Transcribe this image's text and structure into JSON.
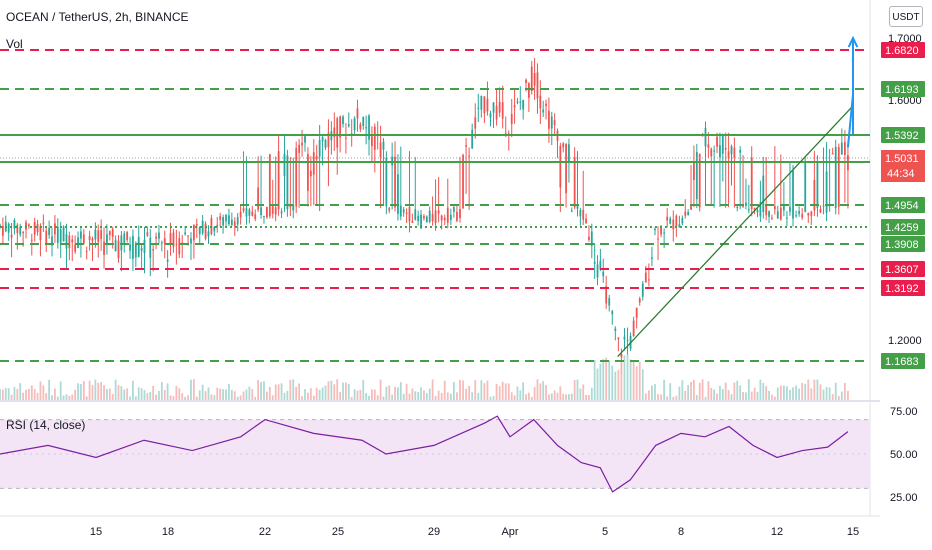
{
  "header": {
    "title": "OCEAN / TetherUS, 2h, BINANCE",
    "vol_label": "Vol"
  },
  "currency_label": "USDT",
  "colors": {
    "up": "#26a69a",
    "down": "#ef5350",
    "green_line": "#43a047",
    "red_line": "#e91e4d",
    "support_line": "#2e7d32",
    "projection": "#2196f3",
    "rsi": "#7b1fa2",
    "rsi_band": "#f3e5f5"
  },
  "chart_data": [
    {
      "type": "candlestick",
      "title": "OCEAN / TetherUS, 2h, BINANCE",
      "x_ticks": [
        "15",
        "18",
        "22",
        "25",
        "29",
        "Apr",
        "5",
        "8",
        "12",
        "15"
      ],
      "y_ticks": [
        "1.7000",
        "1.6000",
        "1.2000"
      ],
      "ylim": [
        1.1,
        1.72
      ],
      "current_price": "1.5031",
      "countdown": "44:34",
      "levels": [
        {
          "value": 1.682,
          "label": "1.6820",
          "style": "dashed",
          "color": "red"
        },
        {
          "value": 1.6193,
          "label": "1.6193",
          "style": "dashed",
          "color": "green"
        },
        {
          "value": 1.5392,
          "label": "1.5392",
          "style": "solid",
          "color": "green"
        },
        {
          "value": 1.4954,
          "label": "1.4954",
          "style": "dashed",
          "color": "green"
        },
        {
          "value": 1.4259,
          "label": "1.4259",
          "style": "dotted",
          "color": "green"
        },
        {
          "value": 1.3908,
          "label": "1.3908",
          "style": "dashed",
          "color": "green"
        },
        {
          "value": 1.3607,
          "label": "1.3607",
          "style": "dashed",
          "color": "red"
        },
        {
          "value": 1.3192,
          "label": "1.3192",
          "style": "dashed",
          "color": "red"
        },
        {
          "value": 1.1683,
          "label": "1.1683",
          "style": "dashed",
          "color": "green"
        }
      ],
      "price_path": [
        {
          "x": 0,
          "y": 1.43
        },
        {
          "x": 4,
          "y": 1.4
        },
        {
          "x": 7,
          "y": 1.39
        },
        {
          "x": 10,
          "y": 1.46
        },
        {
          "x": 13,
          "y": 1.52
        },
        {
          "x": 15,
          "y": 1.57
        },
        {
          "x": 16,
          "y": 1.5
        },
        {
          "x": 17.5,
          "y": 1.45
        },
        {
          "x": 19,
          "y": 1.47
        },
        {
          "x": 20,
          "y": 1.6
        },
        {
          "x": 21,
          "y": 1.56
        },
        {
          "x": 22,
          "y": 1.64
        },
        {
          "x": 23,
          "y": 1.53
        },
        {
          "x": 24,
          "y": 1.47
        },
        {
          "x": 25,
          "y": 1.32
        },
        {
          "x": 25.5,
          "y": 1.19
        },
        {
          "x": 26,
          "y": 1.2
        },
        {
          "x": 27,
          "y": 1.42
        },
        {
          "x": 28,
          "y": 1.45
        },
        {
          "x": 29,
          "y": 1.53
        },
        {
          "x": 30,
          "y": 1.52
        },
        {
          "x": 31,
          "y": 1.48
        },
        {
          "x": 32,
          "y": 1.47
        },
        {
          "x": 33,
          "y": 1.48
        },
        {
          "x": 34,
          "y": 1.49
        },
        {
          "x": 34.8,
          "y": 1.52
        }
      ],
      "projection_path": [
        {
          "x": 34.8,
          "y": 1.52
        },
        {
          "x": 36.1,
          "y": 1.61
        },
        {
          "x": 37.4,
          "y": 1.54
        },
        {
          "x": 38.7,
          "y": 1.64
        },
        {
          "x": 39.5,
          "y": 1.7
        }
      ],
      "trendline": [
        {
          "x": 25.5,
          "y": 1.175
        },
        {
          "x": 39.4,
          "y": 1.59
        }
      ]
    },
    {
      "type": "line",
      "title": "RSI (14, close)",
      "y_ticks": [
        "75.00",
        "50.00",
        "25.00"
      ],
      "ylim": [
        20,
        80
      ],
      "bands": [
        30,
        70
      ],
      "values": [
        {
          "x": 0,
          "y": 50
        },
        {
          "x": 2,
          "y": 55
        },
        {
          "x": 4,
          "y": 48
        },
        {
          "x": 6,
          "y": 58
        },
        {
          "x": 8,
          "y": 52
        },
        {
          "x": 10,
          "y": 60
        },
        {
          "x": 11,
          "y": 70
        },
        {
          "x": 13,
          "y": 62
        },
        {
          "x": 15,
          "y": 58
        },
        {
          "x": 16,
          "y": 50
        },
        {
          "x": 18,
          "y": 55
        },
        {
          "x": 20,
          "y": 68
        },
        {
          "x": 20.5,
          "y": 72
        },
        {
          "x": 21,
          "y": 60
        },
        {
          "x": 22,
          "y": 70
        },
        {
          "x": 23,
          "y": 55
        },
        {
          "x": 24,
          "y": 45
        },
        {
          "x": 24.8,
          "y": 42
        },
        {
          "x": 25.3,
          "y": 28
        },
        {
          "x": 26,
          "y": 35
        },
        {
          "x": 27,
          "y": 55
        },
        {
          "x": 28,
          "y": 62
        },
        {
          "x": 29,
          "y": 60
        },
        {
          "x": 30,
          "y": 66
        },
        {
          "x": 31,
          "y": 55
        },
        {
          "x": 32,
          "y": 48
        },
        {
          "x": 33,
          "y": 52
        },
        {
          "x": 34,
          "y": 54
        },
        {
          "x": 34.8,
          "y": 63
        }
      ]
    }
  ]
}
